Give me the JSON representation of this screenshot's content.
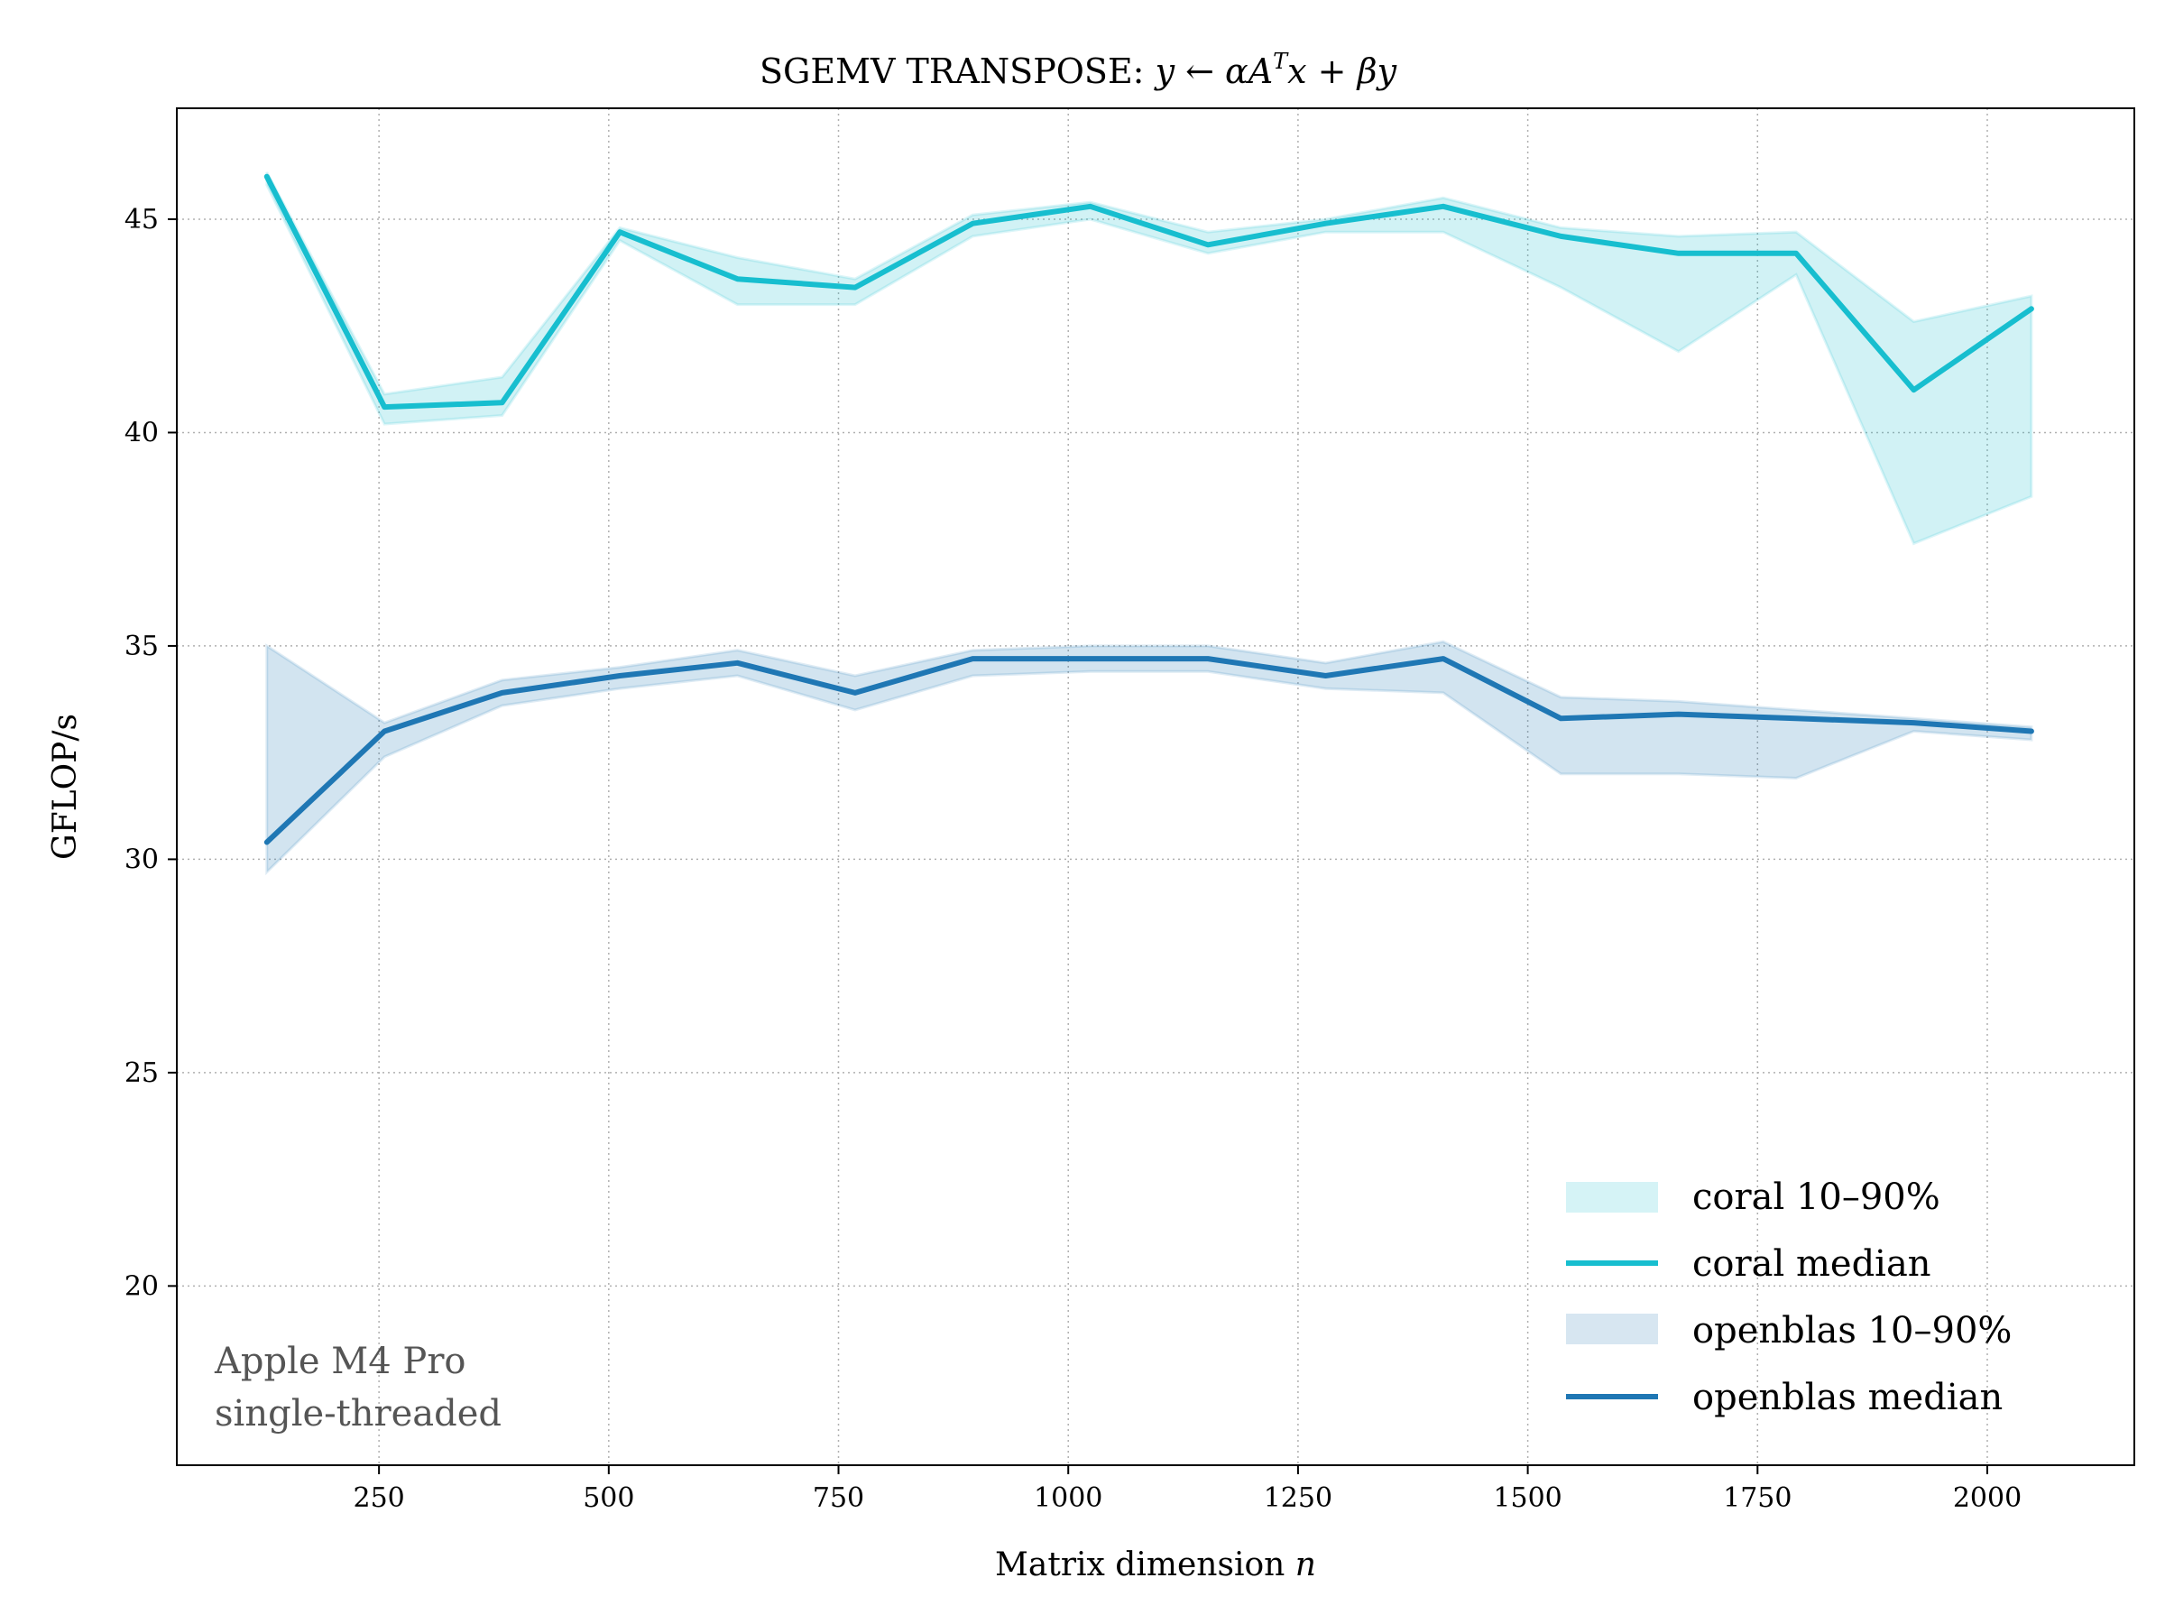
{
  "chart_data": {
    "type": "line",
    "title_prefix": "SGEMV TRANSPOSE: ",
    "title_math": "y ← αA",
    "title_sup": "T",
    "title_math_tail": "x + βy",
    "xlabel": "Matrix dimension ",
    "xlabel_math": "n",
    "ylabel": "GFLOP/s",
    "xlim": [
      30,
      2160
    ],
    "ylim": [
      15.8,
      47.6
    ],
    "x_ticks": [
      250,
      500,
      750,
      1000,
      1250,
      1500,
      1750,
      2000
    ],
    "x_tick_labels": [
      "250",
      "500",
      "750",
      "1000",
      "1250",
      "1500",
      "1750",
      "2000"
    ],
    "y_ticks": [
      20,
      25,
      30,
      35,
      40,
      45
    ],
    "y_tick_labels": [
      "20",
      "25",
      "30",
      "35",
      "40",
      "45"
    ],
    "grid": true,
    "x": [
      128,
      256,
      384,
      512,
      640,
      768,
      896,
      1024,
      1152,
      1280,
      1408,
      1536,
      1664,
      1792,
      1920,
      2048
    ],
    "series": [
      {
        "name": "coral",
        "color": "#17becf",
        "band_color": "#17becf",
        "median": [
          46.0,
          40.6,
          40.7,
          44.7,
          43.6,
          43.4,
          44.9,
          45.3,
          44.4,
          44.9,
          45.3,
          44.6,
          44.2,
          44.2,
          41.0,
          42.9
        ],
        "p10": [
          45.8,
          40.2,
          40.4,
          44.5,
          43.0,
          43.0,
          44.6,
          45.0,
          44.2,
          44.7,
          44.7,
          43.4,
          41.9,
          43.7,
          37.4,
          38.5
        ],
        "p90": [
          46.1,
          40.9,
          41.3,
          44.8,
          44.1,
          43.6,
          45.1,
          45.4,
          44.7,
          45.0,
          45.5,
          44.8,
          44.6,
          44.7,
          42.6,
          43.2
        ]
      },
      {
        "name": "openblas",
        "color": "#1f77b4",
        "band_color": "#aec7de",
        "median": [
          30.4,
          33.0,
          33.9,
          34.3,
          34.6,
          33.9,
          34.7,
          34.7,
          34.7,
          34.3,
          34.7,
          33.3,
          33.4,
          33.3,
          33.2,
          33.0
        ],
        "p10": [
          29.7,
          32.4,
          33.6,
          34.0,
          34.3,
          33.5,
          34.3,
          34.4,
          34.4,
          34.0,
          33.9,
          32.0,
          32.0,
          31.9,
          33.0,
          32.8
        ],
        "p90": [
          35.0,
          33.2,
          34.2,
          34.5,
          34.9,
          34.3,
          34.9,
          35.0,
          35.0,
          34.6,
          35.1,
          33.8,
          33.7,
          33.5,
          33.3,
          33.1
        ]
      }
    ],
    "legend": {
      "position": "lower-right",
      "entries": [
        "coral 10–90%",
        "coral median",
        "openblas 10–90%",
        "openblas median"
      ]
    },
    "annotation": {
      "line1": "Apple M4 Pro",
      "line2": "single-threaded"
    }
  }
}
